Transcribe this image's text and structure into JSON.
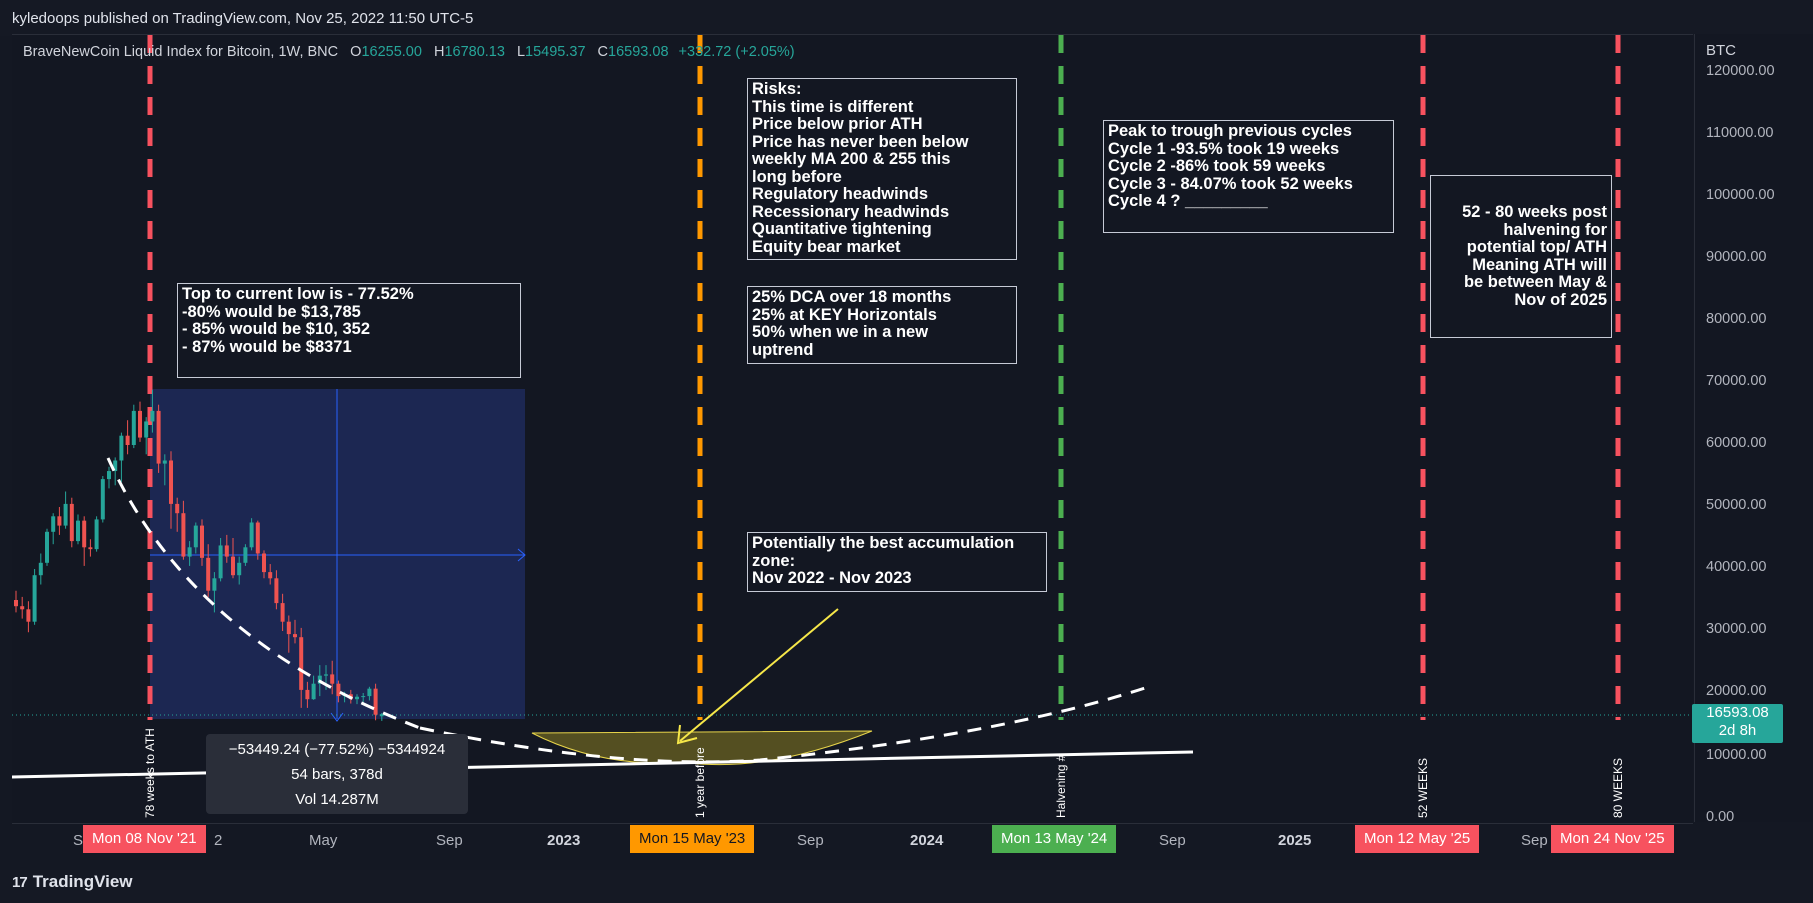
{
  "header": {
    "publisher": "kyledoops published on TradingView.com, Nov 25, 2022 11:50 UTC-5"
  },
  "legend": {
    "symbol": "BraveNewCoin Liquid Index for Bitcoin, 1W, BNC",
    "open_label": "O",
    "open": "16255.00",
    "high_label": "H",
    "high": "16780.13",
    "low_label": "L",
    "low": "15495.37",
    "close_label": "C",
    "close": "16593.08",
    "change": "+332.72 (+2.05%)"
  },
  "colors": {
    "up": "#26a69a",
    "down": "#ef5350",
    "red_marker": "#f7525f",
    "orange_marker": "#ff9800",
    "green_marker": "#4caf50",
    "range_box": "#1e2a5a"
  },
  "price_scale": {
    "unit": "BTC",
    "ticks": [
      "120000.00",
      "110000.00",
      "100000.00",
      "90000.00",
      "80000.00",
      "70000.00",
      "60000.00",
      "50000.00",
      "40000.00",
      "30000.00",
      "20000.00",
      "10000.00",
      "0.00"
    ],
    "last_price": "16593.08",
    "countdown": "2d 8h"
  },
  "time_axis": {
    "labels": [
      {
        "text": "S",
        "bold": false
      },
      {
        "text": "2",
        "bold": false
      },
      {
        "text": "May",
        "bold": false
      },
      {
        "text": "Sep",
        "bold": false
      },
      {
        "text": "2023",
        "bold": true
      },
      {
        "text": "Sep",
        "bold": false
      },
      {
        "text": "2024",
        "bold": true
      },
      {
        "text": "Sep",
        "bold": false
      },
      {
        "text": "2025",
        "bold": true
      },
      {
        "text": "Sep",
        "bold": false
      }
    ],
    "markers": [
      {
        "text": "Mon 08 Nov '21",
        "color": "red"
      },
      {
        "text": "Mon 15 May '23",
        "color": "orange"
      },
      {
        "text": "Mon 13 May '24",
        "color": "green"
      },
      {
        "text": "Mon 12 May '25",
        "color": "red"
      },
      {
        "text": "Mon 24 Nov '25",
        "color": "red"
      }
    ]
  },
  "vertical_labels": [
    "78 weeks to ATH",
    "1 year before",
    "Halvening #",
    "52 WEEKS",
    "80 WEEKS"
  ],
  "notes": {
    "top_to_low": [
      "Top to current low is - 77.52%",
      "",
      "-80% would be $13,785",
      "- 85% would be $10, 352",
      "- 87% would be $8371"
    ],
    "risks": [
      "Risks:",
      "This time is different",
      "Price below prior ATH",
      "Price has never been below",
      "weekly MA 200 & 255 this",
      "long before",
      "Regulatory headwinds",
      "Recessionary headwinds",
      "Quantitative tightening",
      "Equity bear market"
    ],
    "dca": [
      "25% DCA over 18 months",
      "25% at KEY Horizontals",
      "50% when we in a new",
      "uptrend"
    ],
    "accumulation": [
      "Potentially the best accumulation",
      "zone:",
      "Nov 2022 - Nov 2023"
    ],
    "cycles": [
      "Peak to trough previous cycles",
      "",
      "Cycle 1 -93.5% took 19 weeks",
      "Cycle 2 -86% took 59 weeks",
      "Cycle 3 - 84.07% took 52 weeks",
      "Cycle 4 ? _________"
    ],
    "halvening": [
      "52 - 80 weeks post",
      "halvening for",
      "potential top/ ATH",
      "Meaning ATH will",
      "be between May &",
      "Nov of 2025"
    ]
  },
  "measure": {
    "line1": "−53449.24 (−77.52%) −5344924",
    "line2": "54 bars, 378d",
    "line3": "Vol 14.287M"
  },
  "footer": {
    "brand": "TradingView",
    "brand_mark": "17"
  },
  "chart_data": {
    "type": "candlestick",
    "title": "BraveNewCoin Liquid Index for Bitcoin, 1W, BNC",
    "ylabel": "BTC",
    "ylim": [
      0,
      125000
    ],
    "last_close": 16593.08,
    "measure_range": {
      "from_price": 68900,
      "to_price": 15495.37,
      "change": -53449.24,
      "change_pct": -77.52,
      "bars": 54,
      "days": 378
    },
    "candles": [
      [
        35000,
        36500,
        33000,
        34000
      ],
      [
        34000,
        35500,
        32000,
        33500
      ],
      [
        33500,
        34800,
        29800,
        31500
      ],
      [
        31500,
        40000,
        31000,
        39000
      ],
      [
        39000,
        42500,
        37500,
        41000
      ],
      [
        41000,
        46500,
        40500,
        46000
      ],
      [
        46000,
        49000,
        44000,
        48500
      ],
      [
        48500,
        50000,
        45500,
        47000
      ],
      [
        47000,
        52500,
        46500,
        50500
      ],
      [
        50500,
        51500,
        43500,
        44500
      ],
      [
        44500,
        48800,
        44000,
        47800
      ],
      [
        47800,
        48500,
        40500,
        43500
      ],
      [
        43500,
        44800,
        42000,
        43200
      ],
      [
        43200,
        48500,
        42800,
        48000
      ],
      [
        48000,
        55000,
        47500,
        54500
      ],
      [
        54500,
        56500,
        53000,
        55800
      ],
      [
        55800,
        58000,
        53500,
        57500
      ],
      [
        57500,
        62000,
        54000,
        61500
      ],
      [
        61500,
        64000,
        58500,
        60000
      ],
      [
        60000,
        66500,
        59500,
        65500
      ],
      [
        65500,
        67000,
        60500,
        61200
      ],
      [
        61200,
        64500,
        58500,
        63800
      ],
      [
        63800,
        68900,
        62000,
        65500
      ],
      [
        65500,
        66500,
        55500,
        57000
      ],
      [
        57000,
        58500,
        53500,
        57500
      ],
      [
        57500,
        59000,
        46500,
        50500
      ],
      [
        50500,
        51500,
        46000,
        49000
      ],
      [
        49000,
        51000,
        41500,
        42000
      ],
      [
        42000,
        44500,
        40500,
        43500
      ],
      [
        43500,
        47500,
        42500,
        47000
      ],
      [
        47000,
        48000,
        40500,
        41800
      ],
      [
        41800,
        44000,
        35500,
        36500
      ],
      [
        36500,
        39500,
        33000,
        38500
      ],
      [
        38500,
        45000,
        38000,
        43800
      ],
      [
        43800,
        45500,
        41000,
        42000
      ],
      [
        42000,
        45000,
        38500,
        39000
      ],
      [
        39000,
        42000,
        37500,
        41000
      ],
      [
        41000,
        44000,
        40500,
        43500
      ],
      [
        43500,
        48200,
        43000,
        47500
      ],
      [
        47500,
        47800,
        41500,
        42500
      ],
      [
        42500,
        43000,
        38500,
        39500
      ],
      [
        39500,
        40800,
        37500,
        38500
      ],
      [
        38500,
        39800,
        33500,
        34500
      ],
      [
        34500,
        36000,
        30000,
        31500
      ],
      [
        31500,
        32500,
        26500,
        29500
      ],
      [
        29500,
        31800,
        28000,
        29000
      ],
      [
        29000,
        30500,
        17600,
        20500
      ],
      [
        20500,
        21800,
        17600,
        19000
      ],
      [
        19000,
        22800,
        18900,
        21500
      ],
      [
        21500,
        24500,
        19500,
        22800
      ],
      [
        22800,
        24500,
        20500,
        23000
      ],
      [
        23000,
        25200,
        19800,
        21500
      ],
      [
        21500,
        22000,
        18500,
        19500
      ],
      [
        19500,
        20200,
        18500,
        19800
      ],
      [
        19800,
        20500,
        18300,
        19000
      ],
      [
        19000,
        19800,
        18200,
        19400
      ],
      [
        19400,
        20000,
        18200,
        19500
      ],
      [
        19500,
        21000,
        18800,
        20700
      ],
      [
        20700,
        21500,
        15600,
        16500
      ],
      [
        16255,
        16780.13,
        15495.37,
        16593.08
      ]
    ]
  }
}
